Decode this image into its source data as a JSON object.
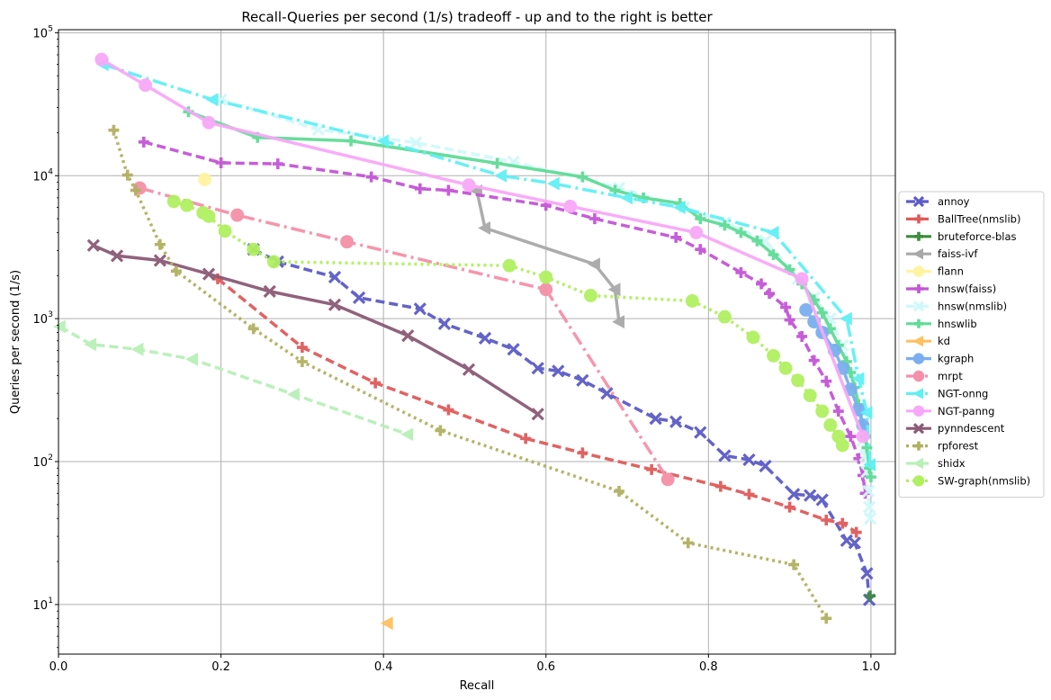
{
  "chart_data": {
    "type": "line",
    "title": "Recall-Queries per second (1/s) tradeoff - up and to the right is better",
    "xlabel": "Recall",
    "ylabel": "Queries per second (1/s)",
    "xlim": [
      0.0,
      1.03
    ],
    "ylim": [
      4.5,
      105000
    ],
    "yscale": "log",
    "grid": true,
    "legend_position": "center-right outside",
    "x_ticks": [
      "0.0",
      "0.2",
      "0.4",
      "0.6",
      "0.8",
      "1.0"
    ],
    "y_ticks": [
      {
        "value": 10,
        "mantissa": "10",
        "exp": "1"
      },
      {
        "value": 100,
        "mantissa": "10",
        "exp": "2"
      },
      {
        "value": 1000,
        "mantissa": "10",
        "exp": "3"
      },
      {
        "value": 10000,
        "mantissa": "10",
        "exp": "4"
      },
      {
        "value": 100000,
        "mantissa": "10",
        "exp": "5"
      }
    ],
    "series": [
      {
        "name": "annoy",
        "color": "#5b5bc7",
        "dash": "10,5",
        "marker": "x",
        "points": [
          [
            0.24,
            3050
          ],
          [
            0.27,
            2500
          ],
          [
            0.34,
            1950
          ],
          [
            0.37,
            1400
          ],
          [
            0.445,
            1170
          ],
          [
            0.475,
            920
          ],
          [
            0.525,
            730
          ],
          [
            0.56,
            610
          ],
          [
            0.59,
            450
          ],
          [
            0.615,
            430
          ],
          [
            0.645,
            370
          ],
          [
            0.675,
            300
          ],
          [
            0.735,
            200
          ],
          [
            0.76,
            190
          ],
          [
            0.79,
            160
          ],
          [
            0.82,
            110
          ],
          [
            0.85,
            103
          ],
          [
            0.87,
            93
          ],
          [
            0.905,
            59
          ],
          [
            0.925,
            58
          ],
          [
            0.94,
            54
          ],
          [
            0.97,
            28
          ],
          [
            0.98,
            27
          ],
          [
            0.995,
            16.5
          ],
          [
            0.998,
            10.8
          ]
        ]
      },
      {
        "name": "BallTree(nmslib)",
        "color": "#e05a5a",
        "dash": "10,5",
        "marker": "plus",
        "points": [
          [
            0.196,
            1900
          ],
          [
            0.3,
            630
          ],
          [
            0.39,
            355
          ],
          [
            0.48,
            230
          ],
          [
            0.575,
            145
          ],
          [
            0.645,
            115
          ],
          [
            0.73,
            88
          ],
          [
            0.815,
            67
          ],
          [
            0.85,
            59
          ],
          [
            0.9,
            48
          ],
          [
            0.945,
            39
          ],
          [
            0.965,
            37
          ],
          [
            0.982,
            32
          ]
        ]
      },
      {
        "name": "bruteforce-blas",
        "color": "#3c8c3c",
        "dash": "",
        "marker": "plus",
        "points": [
          [
            0.999,
            11.5
          ]
        ]
      },
      {
        "name": "faiss-ivf",
        "color": "#a8a8a8",
        "dash": "",
        "marker": "tri-left",
        "points": [
          [
            0.515,
            7800
          ],
          [
            0.525,
            4300
          ],
          [
            0.66,
            2400
          ],
          [
            0.685,
            1600
          ],
          [
            0.69,
            950
          ]
        ]
      },
      {
        "name": "flann",
        "color": "#fff3a0",
        "dash": "",
        "marker": "circle",
        "points": [
          [
            0.18,
            9400
          ]
        ]
      },
      {
        "name": "hnsw(faiss)",
        "color": "#c455d6",
        "dash": "10,5",
        "marker": "plus",
        "points": [
          [
            0.105,
            17200
          ],
          [
            0.2,
            12300
          ],
          [
            0.27,
            12100
          ],
          [
            0.385,
            9800
          ],
          [
            0.445,
            8100
          ],
          [
            0.48,
            7900
          ],
          [
            0.6,
            6200
          ],
          [
            0.66,
            5000
          ],
          [
            0.76,
            3700
          ],
          [
            0.79,
            3050
          ],
          [
            0.84,
            2100
          ],
          [
            0.865,
            1750
          ],
          [
            0.875,
            1500
          ],
          [
            0.895,
            1200
          ],
          [
            0.9,
            980
          ],
          [
            0.915,
            750
          ],
          [
            0.93,
            510
          ],
          [
            0.945,
            365
          ],
          [
            0.96,
            225
          ],
          [
            0.975,
            150
          ],
          [
            0.985,
            105
          ],
          [
            0.99,
            80
          ],
          [
            0.993,
            60
          ]
        ]
      },
      {
        "name": "hnsw(nmslib)",
        "color": "#d0f8fa",
        "dash": "10,5",
        "marker": "x",
        "points": [
          [
            0.2,
            34000
          ],
          [
            0.32,
            21000
          ],
          [
            0.44,
            17000
          ],
          [
            0.56,
            12500
          ],
          [
            0.69,
            8200
          ],
          [
            0.77,
            6000
          ],
          [
            0.82,
            4700
          ],
          [
            0.87,
            3500
          ],
          [
            0.91,
            1900
          ],
          [
            0.93,
            1400
          ],
          [
            0.95,
            1000
          ],
          [
            0.965,
            650
          ],
          [
            0.975,
            420
          ],
          [
            0.985,
            230
          ],
          [
            0.99,
            140
          ],
          [
            0.993,
            110
          ],
          [
            0.995,
            85
          ],
          [
            0.997,
            62
          ],
          [
            0.998,
            48
          ],
          [
            0.999,
            40
          ]
        ]
      },
      {
        "name": "hnswlib",
        "color": "#5fdc96",
        "dash": "",
        "marker": "plus",
        "points": [
          [
            0.16,
            28000
          ],
          [
            0.245,
            18500
          ],
          [
            0.36,
            17500
          ],
          [
            0.54,
            12200
          ],
          [
            0.645,
            9800
          ],
          [
            0.685,
            7900
          ],
          [
            0.72,
            7000
          ],
          [
            0.765,
            6400
          ],
          [
            0.79,
            5000
          ],
          [
            0.82,
            4500
          ],
          [
            0.84,
            4000
          ],
          [
            0.86,
            3500
          ],
          [
            0.88,
            2800
          ],
          [
            0.9,
            2200
          ],
          [
            0.915,
            1750
          ],
          [
            0.93,
            1350
          ],
          [
            0.94,
            1100
          ],
          [
            0.95,
            850
          ],
          [
            0.96,
            650
          ],
          [
            0.97,
            500
          ],
          [
            0.975,
            420
          ],
          [
            0.98,
            330
          ],
          [
            0.985,
            250
          ],
          [
            0.99,
            180
          ],
          [
            0.993,
            150
          ],
          [
            0.995,
            125
          ],
          [
            0.998,
            90
          ],
          [
            1.0,
            78
          ]
        ]
      },
      {
        "name": "kd",
        "color": "#ffc060",
        "dash": "",
        "marker": "tri-left",
        "points": [
          [
            0.405,
            7.4
          ]
        ]
      },
      {
        "name": "kgraph",
        "color": "#7aaef0",
        "dash": "",
        "marker": "circle",
        "points": [
          [
            0.92,
            1150
          ],
          [
            0.93,
            950
          ],
          [
            0.94,
            800
          ],
          [
            0.955,
            600
          ],
          [
            0.965,
            450
          ],
          [
            0.975,
            320
          ],
          [
            0.985,
            230
          ],
          [
            0.99,
            180
          ]
        ]
      },
      {
        "name": "mrpt",
        "color": "#f590a8",
        "dash": "16,5,3,5",
        "marker": "circle",
        "points": [
          [
            0.1,
            8200
          ],
          [
            0.22,
            5300
          ],
          [
            0.355,
            3450
          ],
          [
            0.6,
            1600
          ],
          [
            0.75,
            75
          ]
        ]
      },
      {
        "name": "NGT-onng",
        "color": "#60f0f5",
        "dash": "16,5,3,5",
        "marker": "tri-left",
        "points": [
          [
            0.055,
            60000
          ],
          [
            0.19,
            34000
          ],
          [
            0.4,
            17500
          ],
          [
            0.545,
            10000
          ],
          [
            0.61,
            8800
          ],
          [
            0.7,
            7000
          ],
          [
            0.765,
            6000
          ],
          [
            0.88,
            4000
          ],
          [
            0.97,
            1000
          ],
          [
            0.985,
            380
          ],
          [
            0.995,
            220
          ],
          [
            0.999,
            95
          ]
        ]
      },
      {
        "name": "NGT-panng",
        "color": "#f8a8f8",
        "dash": "",
        "marker": "circle",
        "points": [
          [
            0.053,
            65000
          ],
          [
            0.107,
            43000
          ],
          [
            0.185,
            23500
          ],
          [
            0.505,
            8600
          ],
          [
            0.63,
            6100
          ],
          [
            0.785,
            4000
          ],
          [
            0.915,
            1900
          ],
          [
            0.99,
            150
          ]
        ]
      },
      {
        "name": "pynndescent",
        "color": "#8b5a75",
        "dash": "",
        "marker": "x",
        "points": [
          [
            0.043,
            3250
          ],
          [
            0.072,
            2750
          ],
          [
            0.125,
            2550
          ],
          [
            0.185,
            2050
          ],
          [
            0.26,
            1550
          ],
          [
            0.34,
            1250
          ],
          [
            0.43,
            760
          ],
          [
            0.505,
            440
          ],
          [
            0.59,
            215
          ]
        ]
      },
      {
        "name": "rpforest",
        "color": "#b0b060",
        "dash": "3,4",
        "marker": "plus",
        "points": [
          [
            0.068,
            20800
          ],
          [
            0.085,
            10100
          ],
          [
            0.095,
            7900
          ],
          [
            0.125,
            3300
          ],
          [
            0.145,
            2150
          ],
          [
            0.24,
            850
          ],
          [
            0.3,
            500
          ],
          [
            0.47,
            165
          ],
          [
            0.69,
            62
          ],
          [
            0.775,
            27
          ],
          [
            0.905,
            19
          ],
          [
            0.945,
            8
          ]
        ]
      },
      {
        "name": "shidx",
        "color": "#b8f0b8",
        "dash": "10,5",
        "marker": "tri-left",
        "points": [
          [
            0.002,
            880
          ],
          [
            0.04,
            660
          ],
          [
            0.098,
            610
          ],
          [
            0.165,
            520
          ],
          [
            0.29,
            295
          ],
          [
            0.43,
            155
          ]
        ]
      },
      {
        "name": "SW-graph(nmslib)",
        "color": "#b0f060",
        "dash": "3,4",
        "marker": "circle",
        "points": [
          [
            0.142,
            6600
          ],
          [
            0.158,
            6200
          ],
          [
            0.178,
            5500
          ],
          [
            0.185,
            5200
          ],
          [
            0.205,
            4100
          ],
          [
            0.24,
            3050
          ],
          [
            0.265,
            2500
          ],
          [
            0.555,
            2350
          ],
          [
            0.6,
            1950
          ],
          [
            0.655,
            1450
          ],
          [
            0.78,
            1330
          ],
          [
            0.82,
            1030
          ],
          [
            0.855,
            740
          ],
          [
            0.88,
            550
          ],
          [
            0.895,
            450
          ],
          [
            0.91,
            370
          ],
          [
            0.925,
            290
          ],
          [
            0.94,
            225
          ],
          [
            0.95,
            180
          ],
          [
            0.96,
            150
          ],
          [
            0.965,
            130
          ]
        ]
      }
    ]
  }
}
